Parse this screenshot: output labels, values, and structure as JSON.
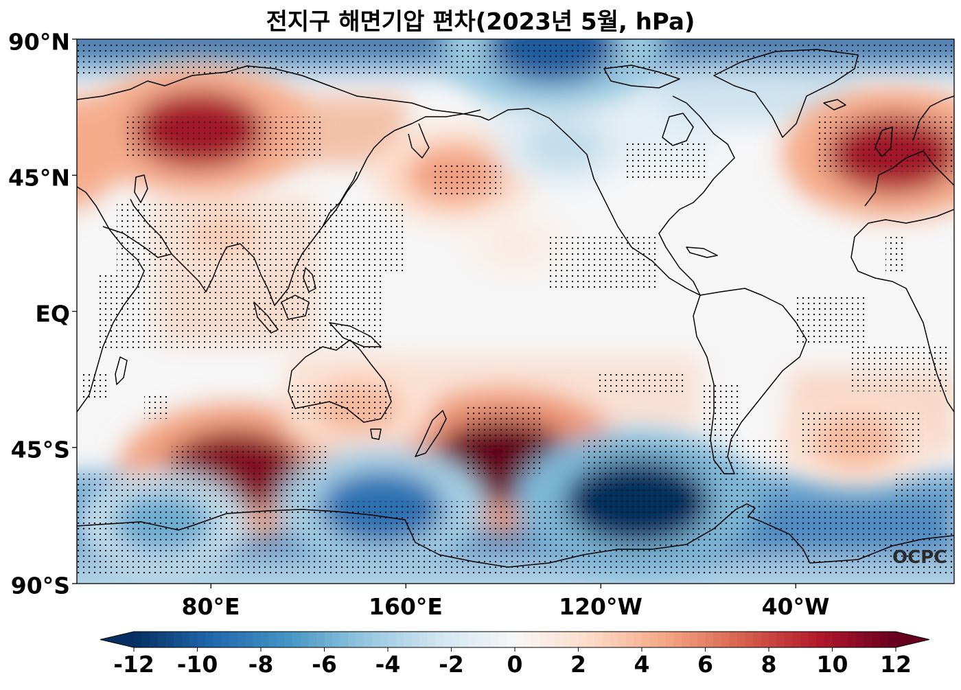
{
  "title": "전지구 해면기압 편차(2023년 5월, hPa)",
  "watermark": "OCPC",
  "lat_ticks": [
    "90°N",
    "45°N",
    "EQ",
    "45°S",
    "90°S"
  ],
  "lon_ticks": [
    "80°E",
    "160°E",
    "120°W",
    "40°W"
  ],
  "colorbar": {
    "ticks": [
      "-12",
      "-10",
      "-8",
      "-6",
      "-4",
      "-2",
      "0",
      "2",
      "4",
      "6",
      "8",
      "10",
      "12"
    ],
    "range": [
      -12,
      12
    ],
    "extend": "both",
    "colormap": "RdBu_r",
    "colors": [
      "#053061",
      "#2166ac",
      "#4393c3",
      "#92c5de",
      "#d1e5f0",
      "#f7f7f7",
      "#fddbc7",
      "#f4a582",
      "#d6604d",
      "#b2182b",
      "#67001f"
    ]
  },
  "map": {
    "projection": "PlateCarree",
    "central_longitude": 180,
    "lat_range": [
      -90,
      90
    ],
    "lon_range": [
      25,
      385
    ],
    "stippling": "statistically significant regions"
  },
  "chart_data": {
    "type": "heatmap",
    "field": "sea level pressure anomaly",
    "units": "hPa",
    "xlabel": "",
    "ylabel": "",
    "anomaly_centers": [
      {
        "lon": 75,
        "lat": 60,
        "value": 10
      },
      {
        "lon": 0,
        "lat": 52,
        "value": 10
      },
      {
        "lon": 180,
        "lat": 45,
        "value": 5
      },
      {
        "lon": 85,
        "lat": 25,
        "value": 3
      },
      {
        "lon": 90,
        "lat": -53,
        "value": 11
      },
      {
        "lon": 200,
        "lat": -50,
        "value": 12
      },
      {
        "lon": 140,
        "lat": -32,
        "value": 4
      },
      {
        "lon": 345,
        "lat": -43,
        "value": 4
      },
      {
        "lon": 225,
        "lat": 55,
        "value": -3
      },
      {
        "lon": 255,
        "lat": -63,
        "value": -12
      },
      {
        "lon": 150,
        "lat": -65,
        "value": -9
      },
      {
        "lon": 60,
        "lat": -70,
        "value": -6
      },
      {
        "lon": 220,
        "lat": 88,
        "value": -10
      },
      {
        "lon": 205,
        "lat": 22,
        "value": 1
      }
    ]
  }
}
